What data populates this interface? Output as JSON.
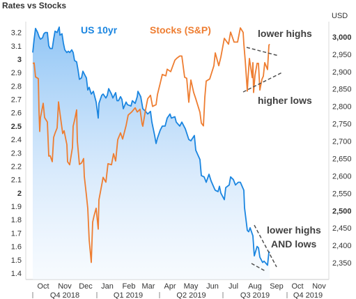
{
  "chart_data": {
    "type": "line",
    "title": "Rates vs Stocks",
    "y2_unit_label": "USD",
    "y1": {
      "min": 1.4,
      "max": 3.25,
      "ticks": [
        "3.2",
        "3.1",
        "3",
        "2.9",
        "2.8",
        "2.7",
        "2.6",
        "2.5",
        "2.4",
        "2.3",
        "2.2",
        "2.1",
        "2",
        "1.9",
        "1.8",
        "1.7",
        "1.6",
        "1.5",
        "1.4"
      ],
      "bold_ticks": [
        "3",
        "2.5",
        "2"
      ]
    },
    "y2": {
      "min": 2320,
      "max": 3030,
      "ticks": [
        "3,000",
        "2,950",
        "2,900",
        "2,850",
        "2,800",
        "2,750",
        "2,700",
        "2,650",
        "2,600",
        "2,550",
        "2,500",
        "2,450",
        "2,400",
        "2,350"
      ],
      "bold_ticks": [
        "3,000",
        "2,500"
      ]
    },
    "months": [
      "Oct",
      "Nov",
      "Dec",
      "Jan",
      "Feb",
      "Mar",
      "Apr",
      "May",
      "Jun",
      "Jul",
      "Aug",
      "Sep",
      "Oct",
      "Nov"
    ],
    "quarters": [
      "Q4 2018",
      "Q1 2019",
      "Q2 2019",
      "Q3 2019",
      "Q4 2019"
    ],
    "series": [
      {
        "name": "US 10yr",
        "axis": "left",
        "color": "#1a85e0",
        "points": [
          [
            "2018-10-01",
            3.05
          ],
          [
            "2018-10-03",
            3.15
          ],
          [
            "2018-10-05",
            3.23
          ],
          [
            "2018-10-08",
            3.2
          ],
          [
            "2018-10-10",
            3.17
          ],
          [
            "2018-10-12",
            3.15
          ],
          [
            "2018-10-15",
            3.16
          ],
          [
            "2018-10-17",
            3.19
          ],
          [
            "2018-10-19",
            3.2
          ],
          [
            "2018-10-22",
            3.2
          ],
          [
            "2018-10-24",
            3.1
          ],
          [
            "2018-10-26",
            3.08
          ],
          [
            "2018-10-29",
            3.08
          ],
          [
            "2018-10-31",
            3.15
          ],
          [
            "2018-11-02",
            3.21
          ],
          [
            "2018-11-05",
            3.2
          ],
          [
            "2018-11-08",
            3.24
          ],
          [
            "2018-11-09",
            3.18
          ],
          [
            "2018-11-12",
            3.19
          ],
          [
            "2018-11-14",
            3.12
          ],
          [
            "2018-11-16",
            3.07
          ],
          [
            "2018-11-19",
            3.05
          ],
          [
            "2018-11-21",
            3.06
          ],
          [
            "2018-11-23",
            3.05
          ],
          [
            "2018-11-26",
            3.07
          ],
          [
            "2018-11-28",
            3.05
          ],
          [
            "2018-11-30",
            2.99
          ],
          [
            "2018-12-03",
            2.98
          ],
          [
            "2018-12-05",
            2.92
          ],
          [
            "2018-12-07",
            2.85
          ],
          [
            "2018-12-10",
            2.86
          ],
          [
            "2018-12-12",
            2.91
          ],
          [
            "2018-12-14",
            2.89
          ],
          [
            "2018-12-17",
            2.86
          ],
          [
            "2018-12-19",
            2.77
          ],
          [
            "2018-12-21",
            2.79
          ],
          [
            "2018-12-24",
            2.74
          ],
          [
            "2018-12-27",
            2.76
          ],
          [
            "2018-12-31",
            2.68
          ],
          [
            "2019-01-03",
            2.56
          ],
          [
            "2019-01-04",
            2.67
          ],
          [
            "2019-01-08",
            2.73
          ],
          [
            "2019-01-10",
            2.74
          ],
          [
            "2019-01-14",
            2.71
          ],
          [
            "2019-01-16",
            2.73
          ],
          [
            "2019-01-18",
            2.78
          ],
          [
            "2019-01-22",
            2.74
          ],
          [
            "2019-01-24",
            2.71
          ],
          [
            "2019-01-28",
            2.75
          ],
          [
            "2019-01-30",
            2.69
          ],
          [
            "2019-02-01",
            2.69
          ],
          [
            "2019-02-04",
            2.72
          ],
          [
            "2019-02-06",
            2.7
          ],
          [
            "2019-02-08",
            2.63
          ],
          [
            "2019-02-12",
            2.68
          ],
          [
            "2019-02-14",
            2.66
          ],
          [
            "2019-02-19",
            2.65
          ],
          [
            "2019-02-21",
            2.69
          ],
          [
            "2019-02-25",
            2.67
          ],
          [
            "2019-02-28",
            2.72
          ],
          [
            "2019-03-01",
            2.76
          ],
          [
            "2019-03-05",
            2.72
          ],
          [
            "2019-03-08",
            2.63
          ],
          [
            "2019-03-12",
            2.61
          ],
          [
            "2019-03-15",
            2.59
          ],
          [
            "2019-03-19",
            2.61
          ],
          [
            "2019-03-21",
            2.53
          ],
          [
            "2019-03-25",
            2.43
          ],
          [
            "2019-03-27",
            2.37
          ],
          [
            "2019-03-29",
            2.41
          ],
          [
            "2019-04-02",
            2.47
          ],
          [
            "2019-04-05",
            2.5
          ],
          [
            "2019-04-09",
            2.5
          ],
          [
            "2019-04-12",
            2.56
          ],
          [
            "2019-04-16",
            2.59
          ],
          [
            "2019-04-18",
            2.56
          ],
          [
            "2019-04-23",
            2.57
          ],
          [
            "2019-04-25",
            2.53
          ],
          [
            "2019-04-30",
            2.5
          ],
          [
            "2019-05-03",
            2.53
          ],
          [
            "2019-05-08",
            2.48
          ],
          [
            "2019-05-13",
            2.4
          ],
          [
            "2019-05-16",
            2.39
          ],
          [
            "2019-05-21",
            2.43
          ],
          [
            "2019-05-23",
            2.32
          ],
          [
            "2019-05-29",
            2.25
          ],
          [
            "2019-05-31",
            2.13
          ],
          [
            "2019-06-04",
            2.12
          ],
          [
            "2019-06-07",
            2.08
          ],
          [
            "2019-06-11",
            2.14
          ],
          [
            "2019-06-14",
            2.09
          ],
          [
            "2019-06-19",
            2.03
          ],
          [
            "2019-06-20",
            2.02
          ],
          [
            "2019-06-24",
            2.01
          ],
          [
            "2019-06-26",
            2.05
          ],
          [
            "2019-06-28",
            2.0
          ],
          [
            "2019-07-03",
            1.95
          ],
          [
            "2019-07-05",
            2.04
          ],
          [
            "2019-07-10",
            2.06
          ],
          [
            "2019-07-12",
            2.12
          ],
          [
            "2019-07-16",
            2.1
          ],
          [
            "2019-07-19",
            2.06
          ],
          [
            "2019-07-23",
            2.08
          ],
          [
            "2019-07-26",
            2.08
          ],
          [
            "2019-07-31",
            2.02
          ],
          [
            "2019-08-01",
            1.89
          ],
          [
            "2019-08-05",
            1.72
          ],
          [
            "2019-08-07",
            1.71
          ],
          [
            "2019-08-09",
            1.74
          ],
          [
            "2019-08-13",
            1.68
          ],
          [
            "2019-08-15",
            1.53
          ],
          [
            "2019-08-19",
            1.6
          ],
          [
            "2019-08-21",
            1.59
          ],
          [
            "2019-08-23",
            1.52
          ],
          [
            "2019-08-27",
            1.48
          ],
          [
            "2019-08-29",
            1.49
          ],
          [
            "2019-09-03",
            1.46
          ],
          [
            "2019-09-05",
            1.56
          ],
          [
            "2019-09-06",
            1.55
          ]
        ]
      },
      {
        "name": "Stocks (S&P)",
        "axis": "right",
        "color": "#ee7d31",
        "points": [
          [
            "2018-10-01",
            2924
          ],
          [
            "2018-10-03",
            2925
          ],
          [
            "2018-10-05",
            2885
          ],
          [
            "2018-10-09",
            2880
          ],
          [
            "2018-10-10",
            2785
          ],
          [
            "2018-10-11",
            2728
          ],
          [
            "2018-10-12",
            2767
          ],
          [
            "2018-10-16",
            2809
          ],
          [
            "2018-10-18",
            2768
          ],
          [
            "2018-10-22",
            2755
          ],
          [
            "2018-10-24",
            2657
          ],
          [
            "2018-10-26",
            2658
          ],
          [
            "2018-10-29",
            2641
          ],
          [
            "2018-10-31",
            2711
          ],
          [
            "2018-11-02",
            2723
          ],
          [
            "2018-11-05",
            2738
          ],
          [
            "2018-11-07",
            2813
          ],
          [
            "2018-11-09",
            2781
          ],
          [
            "2018-11-13",
            2722
          ],
          [
            "2018-11-15",
            2730
          ],
          [
            "2018-11-19",
            2690
          ],
          [
            "2018-11-20",
            2641
          ],
          [
            "2018-11-23",
            2632
          ],
          [
            "2018-11-27",
            2682
          ],
          [
            "2018-11-28",
            2743
          ],
          [
            "2018-11-30",
            2760
          ],
          [
            "2018-12-03",
            2790
          ],
          [
            "2018-12-04",
            2700
          ],
          [
            "2018-12-07",
            2633
          ],
          [
            "2018-12-10",
            2637
          ],
          [
            "2018-12-13",
            2650
          ],
          [
            "2018-12-14",
            2599
          ],
          [
            "2018-12-17",
            2545
          ],
          [
            "2018-12-19",
            2506
          ],
          [
            "2018-12-21",
            2416
          ],
          [
            "2018-12-24",
            2351
          ],
          [
            "2018-12-26",
            2467
          ],
          [
            "2018-12-28",
            2485
          ],
          [
            "2018-12-31",
            2507
          ],
          [
            "2019-01-03",
            2447
          ],
          [
            "2019-01-04",
            2531
          ],
          [
            "2019-01-08",
            2574
          ],
          [
            "2019-01-10",
            2596
          ],
          [
            "2019-01-14",
            2582
          ],
          [
            "2019-01-17",
            2635
          ],
          [
            "2019-01-22",
            2632
          ],
          [
            "2019-01-25",
            2664
          ],
          [
            "2019-01-28",
            2643
          ],
          [
            "2019-01-31",
            2704
          ],
          [
            "2019-02-04",
            2724
          ],
          [
            "2019-02-07",
            2706
          ],
          [
            "2019-02-12",
            2745
          ],
          [
            "2019-02-15",
            2775
          ],
          [
            "2019-02-20",
            2784
          ],
          [
            "2019-02-25",
            2796
          ],
          [
            "2019-02-28",
            2784
          ],
          [
            "2019-03-04",
            2792
          ],
          [
            "2019-03-07",
            2749
          ],
          [
            "2019-03-08",
            2743
          ],
          [
            "2019-03-12",
            2791
          ],
          [
            "2019-03-15",
            2822
          ],
          [
            "2019-03-19",
            2832
          ],
          [
            "2019-03-22",
            2800
          ],
          [
            "2019-03-27",
            2805
          ],
          [
            "2019-03-29",
            2834
          ],
          [
            "2019-04-02",
            2867
          ],
          [
            "2019-04-05",
            2892
          ],
          [
            "2019-04-10",
            2888
          ],
          [
            "2019-04-12",
            2907
          ],
          [
            "2019-04-17",
            2900
          ],
          [
            "2019-04-23",
            2933
          ],
          [
            "2019-04-26",
            2939
          ],
          [
            "2019-04-30",
            2945
          ],
          [
            "2019-05-03",
            2945
          ],
          [
            "2019-05-07",
            2884
          ],
          [
            "2019-05-10",
            2881
          ],
          [
            "2019-05-13",
            2812
          ],
          [
            "2019-05-16",
            2876
          ],
          [
            "2019-05-20",
            2840
          ],
          [
            "2019-05-23",
            2822
          ],
          [
            "2019-05-29",
            2783
          ],
          [
            "2019-05-31",
            2752
          ],
          [
            "2019-06-03",
            2744
          ],
          [
            "2019-06-05",
            2826
          ],
          [
            "2019-06-07",
            2873
          ],
          [
            "2019-06-12",
            2879
          ],
          [
            "2019-06-18",
            2917
          ],
          [
            "2019-06-20",
            2954
          ],
          [
            "2019-06-25",
            2917
          ],
          [
            "2019-06-28",
            2942
          ],
          [
            "2019-07-03",
            2996
          ],
          [
            "2019-07-09",
            2979
          ],
          [
            "2019-07-12",
            3014
          ],
          [
            "2019-07-17",
            2985
          ],
          [
            "2019-07-22",
            2985
          ],
          [
            "2019-07-26",
            3026
          ],
          [
            "2019-07-30",
            3013
          ],
          [
            "2019-07-31",
            2980
          ],
          [
            "2019-08-02",
            2932
          ],
          [
            "2019-08-05",
            2844
          ],
          [
            "2019-08-06",
            2881
          ],
          [
            "2019-08-08",
            2938
          ],
          [
            "2019-08-12",
            2883
          ],
          [
            "2019-08-13",
            2926
          ],
          [
            "2019-08-14",
            2840
          ],
          [
            "2019-08-16",
            2889
          ],
          [
            "2019-08-19",
            2924
          ],
          [
            "2019-08-21",
            2924
          ],
          [
            "2019-08-23",
            2847
          ],
          [
            "2019-08-26",
            2878
          ],
          [
            "2019-08-28",
            2887
          ],
          [
            "2019-08-30",
            2926
          ],
          [
            "2019-09-03",
            2906
          ],
          [
            "2019-09-05",
            2976
          ],
          [
            "2019-09-06",
            2979
          ]
        ]
      }
    ],
    "annotations": [
      {
        "text": "lower highs",
        "color": "#404040"
      },
      {
        "text": "higher lows",
        "color": "#404040"
      },
      {
        "text": "lower highs",
        "color": "#404040"
      },
      {
        "text": "AND lows",
        "color": "#404040"
      }
    ],
    "grid": false,
    "fill_under_left_series": true
  }
}
